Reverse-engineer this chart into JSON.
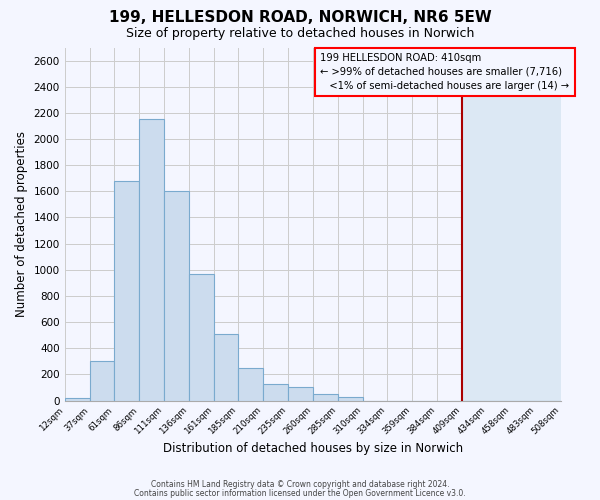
{
  "title": "199, HELLESDON ROAD, NORWICH, NR6 5EW",
  "subtitle": "Size of property relative to detached houses in Norwich",
  "xlabel": "Distribution of detached houses by size in Norwich",
  "ylabel": "Number of detached properties",
  "bar_color": "#ccdcee",
  "bar_edge_color": "#7aaace",
  "bin_edges": [
    12,
    37,
    61,
    86,
    111,
    136,
    161,
    185,
    210,
    235,
    260,
    285,
    310,
    334,
    359,
    384,
    409,
    434,
    458,
    483,
    508
  ],
  "bar_heights": [
    20,
    300,
    1680,
    2150,
    1600,
    970,
    510,
    250,
    130,
    100,
    50,
    30,
    0,
    0,
    0,
    0,
    0,
    0,
    0,
    0
  ],
  "red_line_x": 409,
  "right_fill_color": "#dce8f4",
  "ylim": [
    0,
    2700
  ],
  "yticks": [
    0,
    200,
    400,
    600,
    800,
    1000,
    1200,
    1400,
    1600,
    1800,
    2000,
    2200,
    2400,
    2600
  ],
  "ann_title": "199 HELLESDON ROAD: 410sqm",
  "ann_line2": ">99% of detached houses are smaller (7,716)",
  "ann_line3": "<1% of semi-detached houses are larger (14)",
  "footer_line1": "Contains HM Land Registry data © Crown copyright and database right 2024.",
  "footer_line2": "Contains public sector information licensed under the Open Government Licence v3.0.",
  "background_color": "#f4f6ff",
  "grid_color": "#cccccc"
}
